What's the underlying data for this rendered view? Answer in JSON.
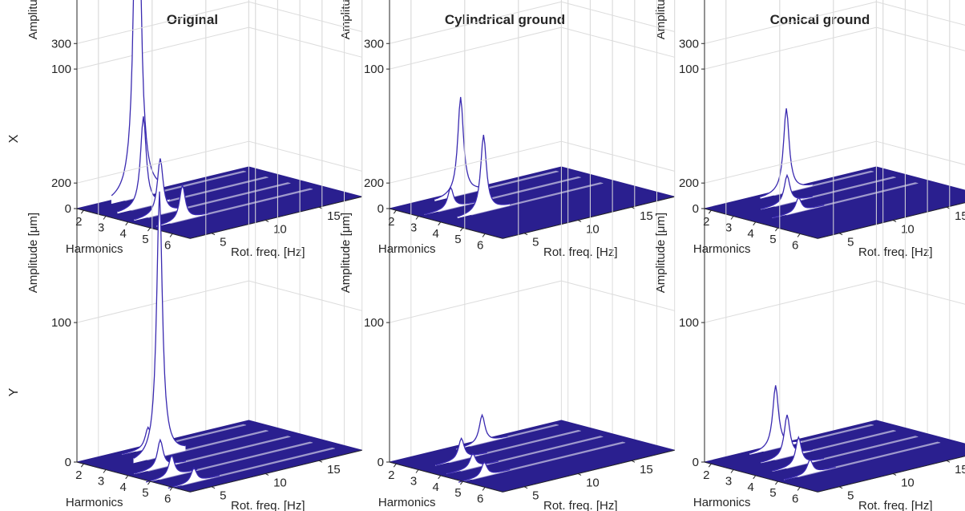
{
  "columns": [
    "Original",
    "Cylindrical ground",
    "Conical ground"
  ],
  "rows": [
    "X",
    "Y"
  ],
  "axes": {
    "zlabel": "Amplitude [μm]",
    "xlabel": "Harmonics",
    "ylabel": "Rot. freq. [Hz]",
    "zticks": [
      "0",
      "100",
      "200",
      "300"
    ],
    "xticks": [
      "2",
      "3",
      "4",
      "5",
      "6"
    ],
    "yticks": [
      "5",
      "10",
      "15"
    ]
  },
  "colors": {
    "surface": "#2a1f8f",
    "peak_line": "#3a2ab0",
    "grid": "#dcdcdc"
  },
  "chart_data": [
    {
      "type": "surface",
      "title": "Original",
      "row": "X",
      "xlabel": "Harmonics",
      "ylabel": "Rot. freq. [Hz]",
      "zlabel": "Amplitude [μm]",
      "xlim": [
        1.7,
        6.8
      ],
      "ylim": [
        3,
        19
      ],
      "zlim": [
        0,
        330
      ],
      "peaks": [
        {
          "harmonic": 2,
          "freq": 8,
          "amp": 325
        },
        {
          "harmonic": 3,
          "freq": 6.5,
          "amp": 65
        },
        {
          "harmonic": 4,
          "freq": 6,
          "amp": 40
        },
        {
          "harmonic": 5,
          "freq": 6,
          "amp": 25
        }
      ]
    },
    {
      "type": "surface",
      "title": "Cylindrical ground",
      "row": "X",
      "xlabel": "Harmonics",
      "ylabel": "Rot. freq. [Hz]",
      "zlabel": "Amplitude [μm]",
      "xlim": [
        1.7,
        6.8
      ],
      "ylim": [
        3,
        19
      ],
      "zlim": [
        0,
        330
      ],
      "peaks": [
        {
          "harmonic": 2,
          "freq": 9,
          "amp": 70
        },
        {
          "harmonic": 3,
          "freq": 6,
          "amp": 15
        },
        {
          "harmonic": 4,
          "freq": 7,
          "amp": 55
        }
      ]
    },
    {
      "type": "surface",
      "title": "Conical ground",
      "row": "X",
      "xlabel": "Harmonics",
      "ylabel": "Rot. freq. [Hz]",
      "zlabel": "Amplitude [μm]",
      "xlim": [
        1.7,
        6.8
      ],
      "ylim": [
        3,
        19
      ],
      "zlim": [
        0,
        330
      ],
      "peaks": [
        {
          "harmonic": 2,
          "freq": 10,
          "amp": 60
        },
        {
          "harmonic": 3,
          "freq": 8,
          "amp": 20
        },
        {
          "harmonic": 4,
          "freq": 7,
          "amp": 10
        }
      ]
    },
    {
      "type": "surface",
      "title": "Original",
      "row": "Y",
      "xlabel": "Harmonics",
      "ylabel": "Rot. freq. [Hz]",
      "zlabel": "Amplitude [μm]",
      "xlim": [
        1.7,
        6.8
      ],
      "ylim": [
        3,
        19
      ],
      "zlim": [
        0,
        330
      ],
      "peaks": [
        {
          "harmonic": 2,
          "freq": 9,
          "amp": 15
        },
        {
          "harmonic": 3,
          "freq": 8,
          "amp": 190
        },
        {
          "harmonic": 4,
          "freq": 6,
          "amp": 20
        },
        {
          "harmonic": 5,
          "freq": 5,
          "amp": 15
        },
        {
          "harmonic": 6,
          "freq": 5,
          "amp": 10
        }
      ]
    },
    {
      "type": "surface",
      "title": "Cylindrical ground",
      "row": "Y",
      "xlabel": "Harmonics",
      "ylabel": "Rot. freq. [Hz]",
      "zlabel": "Amplitude [μm]",
      "xlim": [
        1.7,
        6.8
      ],
      "ylim": [
        3,
        19
      ],
      "zlim": [
        0,
        330
      ],
      "peaks": [
        {
          "harmonic": 2,
          "freq": 11,
          "amp": 20
        },
        {
          "harmonic": 3,
          "freq": 7,
          "amp": 15
        },
        {
          "harmonic": 4,
          "freq": 6,
          "amp": 10
        },
        {
          "harmonic": 5,
          "freq": 5,
          "amp": 10
        }
      ]
    },
    {
      "type": "surface",
      "title": "Conical ground",
      "row": "Y",
      "xlabel": "Harmonics",
      "ylabel": "Rot. freq. [Hz]",
      "zlabel": "Amplitude [μm]",
      "xlim": [
        1.7,
        6.8
      ],
      "ylim": [
        3,
        19
      ],
      "zlim": [
        0,
        330
      ],
      "peaks": [
        {
          "harmonic": 2,
          "freq": 9,
          "amp": 45
        },
        {
          "harmonic": 3,
          "freq": 8,
          "amp": 30
        },
        {
          "harmonic": 4,
          "freq": 7,
          "amp": 20
        },
        {
          "harmonic": 5,
          "freq": 6,
          "amp": 10
        }
      ]
    }
  ]
}
